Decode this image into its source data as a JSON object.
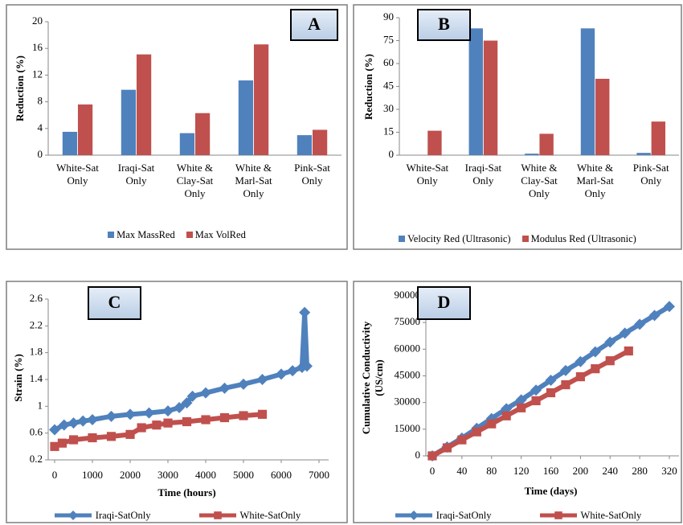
{
  "chart_data": [
    {
      "type": "bar",
      "label": "A",
      "ylabel": "Reduction (%)",
      "categories": [
        "White-Sat Only",
        "Iraqi-Sat Only",
        "White & Clay-Sat Only",
        "White & Marl-Sat Only",
        "Pink-Sat Only"
      ],
      "series": [
        {
          "name": "Max MassRed",
          "color": "#4f81bd",
          "values": [
            3.5,
            9.8,
            3.3,
            11.2,
            3.0
          ]
        },
        {
          "name": "Max VolRed",
          "color": "#c0504d",
          "values": [
            7.6,
            15.1,
            6.3,
            16.6,
            3.8
          ]
        }
      ],
      "ylim": [
        0,
        20
      ],
      "yticks": [
        0,
        4,
        8,
        12,
        16,
        20
      ]
    },
    {
      "type": "bar",
      "label": "B",
      "ylabel": "Reduction (%)",
      "categories": [
        "White-Sat Only",
        "Iraqi-Sat Only",
        "White & Clay-Sat Only",
        "White & Marl-Sat Only",
        "Pink-Sat Only"
      ],
      "series": [
        {
          "name": "Velocity Red (Ultrasonic)",
          "color": "#4f81bd",
          "values": [
            0,
            83,
            1,
            83,
            1.5
          ]
        },
        {
          "name": "Modulus Red (Ultrasonic)",
          "color": "#c0504d",
          "values": [
            16,
            75,
            14,
            50,
            22
          ]
        }
      ],
      "ylim": [
        0,
        90
      ],
      "yticks": [
        0,
        15,
        30,
        45,
        60,
        75,
        90
      ]
    },
    {
      "type": "line",
      "label": "C",
      "ylabel": "Strain (%)",
      "xlabel": "Time (hours)",
      "series": [
        {
          "name": "Iraqi-SatOnly",
          "color": "#4f81bd",
          "marker": "diamond",
          "x": [
            0,
            250,
            500,
            750,
            1000,
            1500,
            2000,
            2500,
            3000,
            3300,
            3500,
            3650,
            4000,
            4500,
            5000,
            5500,
            6000,
            6300,
            6550,
            6620,
            6680
          ],
          "values": [
            0.65,
            0.72,
            0.75,
            0.78,
            0.8,
            0.85,
            0.88,
            0.9,
            0.93,
            0.98,
            1.05,
            1.15,
            1.2,
            1.27,
            1.33,
            1.4,
            1.48,
            1.53,
            1.58,
            2.4,
            1.6
          ]
        },
        {
          "name": "White-SatOnly",
          "color": "#c0504d",
          "marker": "square",
          "x": [
            0,
            200,
            500,
            1000,
            1500,
            2000,
            2300,
            2700,
            3000,
            3500,
            4000,
            4500,
            5000,
            5500
          ],
          "values": [
            0.4,
            0.45,
            0.5,
            0.53,
            0.55,
            0.58,
            0.68,
            0.72,
            0.75,
            0.77,
            0.8,
            0.83,
            0.86,
            0.88
          ]
        }
      ],
      "xlim": [
        0,
        7000
      ],
      "xticks": [
        0,
        1000,
        2000,
        3000,
        4000,
        5000,
        6000,
        7000
      ],
      "ylim": [
        0.2,
        2.6
      ],
      "yticks": [
        0.2,
        0.6,
        1,
        1.4,
        1.8,
        2.2,
        2.6
      ]
    },
    {
      "type": "line",
      "label": "D",
      "ylabel": [
        "Cumulative Conductivity",
        "(US/cm)"
      ],
      "xlabel": "Time (days)",
      "series": [
        {
          "name": "Iraqi-SatOnly",
          "color": "#4f81bd",
          "marker": "diamond",
          "x": [
            0,
            20,
            40,
            60,
            80,
            100,
            120,
            140,
            160,
            180,
            200,
            220,
            240,
            260,
            280,
            300,
            320
          ],
          "values": [
            0,
            5000,
            10000,
            15500,
            21000,
            26500,
            31500,
            37000,
            42500,
            48000,
            53000,
            58500,
            64000,
            69000,
            74000,
            79000,
            84000
          ]
        },
        {
          "name": "White-SatOnly",
          "color": "#c0504d",
          "marker": "square",
          "x": [
            0,
            20,
            40,
            60,
            80,
            100,
            120,
            140,
            160,
            180,
            200,
            220,
            240,
            265
          ],
          "values": [
            0,
            4500,
            9000,
            13500,
            18000,
            22500,
            27000,
            31000,
            35500,
            40000,
            44500,
            49000,
            53500,
            59000
          ]
        }
      ],
      "xlim": [
        0,
        320
      ],
      "xticks": [
        0,
        40,
        80,
        120,
        160,
        200,
        240,
        280,
        320
      ],
      "ylim": [
        0,
        90000
      ],
      "yticks": [
        0,
        15000,
        30000,
        45000,
        60000,
        75000,
        90000
      ]
    }
  ]
}
